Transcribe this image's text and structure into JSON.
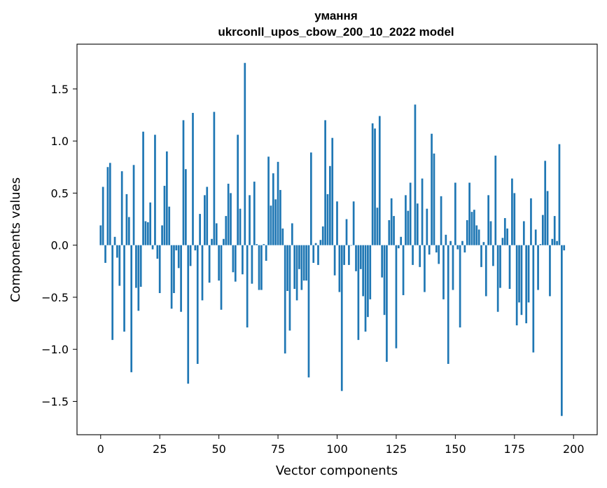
{
  "chart_data": {
    "type": "bar",
    "title": "умання",
    "subtitle": "ukrconll_upos_cbow_200_10_2022 model",
    "xlabel": "Vector components",
    "ylabel": "Components values",
    "xlim": [
      -10,
      210
    ],
    "ylim": [
      -1.82,
      1.93
    ],
    "x_ticks": [
      0,
      25,
      50,
      75,
      100,
      125,
      150,
      175,
      200
    ],
    "y_ticks": [
      -1.5,
      -1.0,
      -0.5,
      0.0,
      0.5,
      1.0,
      1.5
    ],
    "y_tick_labels": [
      "−1.5",
      "−1.0",
      "−0.5",
      "0.0",
      "0.5",
      "1.0",
      "1.5"
    ],
    "grid": false,
    "bar_color": "#1f77b4",
    "values": [
      0.19,
      0.56,
      -0.17,
      0.75,
      0.79,
      -0.91,
      0.08,
      -0.12,
      -0.39,
      0.71,
      -0.83,
      0.49,
      0.27,
      -1.22,
      0.77,
      -0.41,
      -0.63,
      -0.4,
      1.09,
      0.23,
      0.22,
      0.41,
      -0.04,
      1.06,
      -0.13,
      -0.46,
      0.19,
      0.57,
      0.9,
      0.37,
      -0.61,
      -0.46,
      -0.05,
      -0.22,
      -0.64,
      1.2,
      0.73,
      -1.33,
      -0.2,
      1.27,
      -0.05,
      -1.14,
      0.3,
      -0.53,
      0.48,
      0.56,
      -0.36,
      0.06,
      1.28,
      0.21,
      -0.34,
      -0.62,
      0.06,
      0.28,
      0.59,
      0.5,
      -0.26,
      -0.35,
      1.06,
      0.35,
      -0.28,
      1.75,
      -0.79,
      0.48,
      -0.37,
      0.61,
      0.01,
      -0.43,
      -0.43,
      0.01,
      -0.15,
      0.85,
      0.38,
      0.69,
      0.44,
      0.8,
      0.53,
      0.16,
      -1.04,
      -0.44,
      -0.82,
      0.21,
      -0.42,
      -0.53,
      -0.23,
      -0.43,
      -0.34,
      -0.34,
      -1.27,
      0.89,
      -0.17,
      0.02,
      -0.19,
      0.05,
      0.18,
      1.2,
      0.49,
      0.76,
      1.03,
      -0.29,
      0.42,
      -0.45,
      -1.4,
      -0.19,
      0.25,
      -0.19,
      0.0,
      0.42,
      -0.25,
      -0.91,
      -0.23,
      -0.49,
      -0.83,
      -0.69,
      -0.52,
      1.17,
      1.12,
      0.36,
      1.24,
      -0.31,
      -0.67,
      -1.12,
      0.24,
      0.45,
      0.28,
      -0.99,
      -0.03,
      0.08,
      -0.48,
      0.48,
      0.33,
      0.6,
      -0.19,
      1.35,
      0.4,
      -0.21,
      0.64,
      -0.45,
      0.35,
      -0.09,
      1.07,
      0.88,
      -0.07,
      -0.18,
      0.47,
      -0.52,
      0.1,
      -1.14,
      0.04,
      -0.43,
      0.6,
      -0.04,
      -0.79,
      0.04,
      -0.07,
      0.24,
      0.6,
      0.32,
      0.34,
      0.19,
      0.15,
      -0.21,
      0.03,
      -0.49,
      0.48,
      0.23,
      -0.2,
      0.86,
      -0.64,
      -0.41,
      0.07,
      0.26,
      0.16,
      -0.42,
      0.64,
      0.5,
      -0.77,
      -0.55,
      -0.67,
      0.23,
      -0.75,
      -0.55,
      0.45,
      -1.03,
      0.15,
      -0.43,
      0.01,
      0.29,
      0.81,
      0.52,
      -0.49,
      0.06,
      0.28,
      0.04,
      0.97,
      -1.64,
      -0.05
    ]
  }
}
